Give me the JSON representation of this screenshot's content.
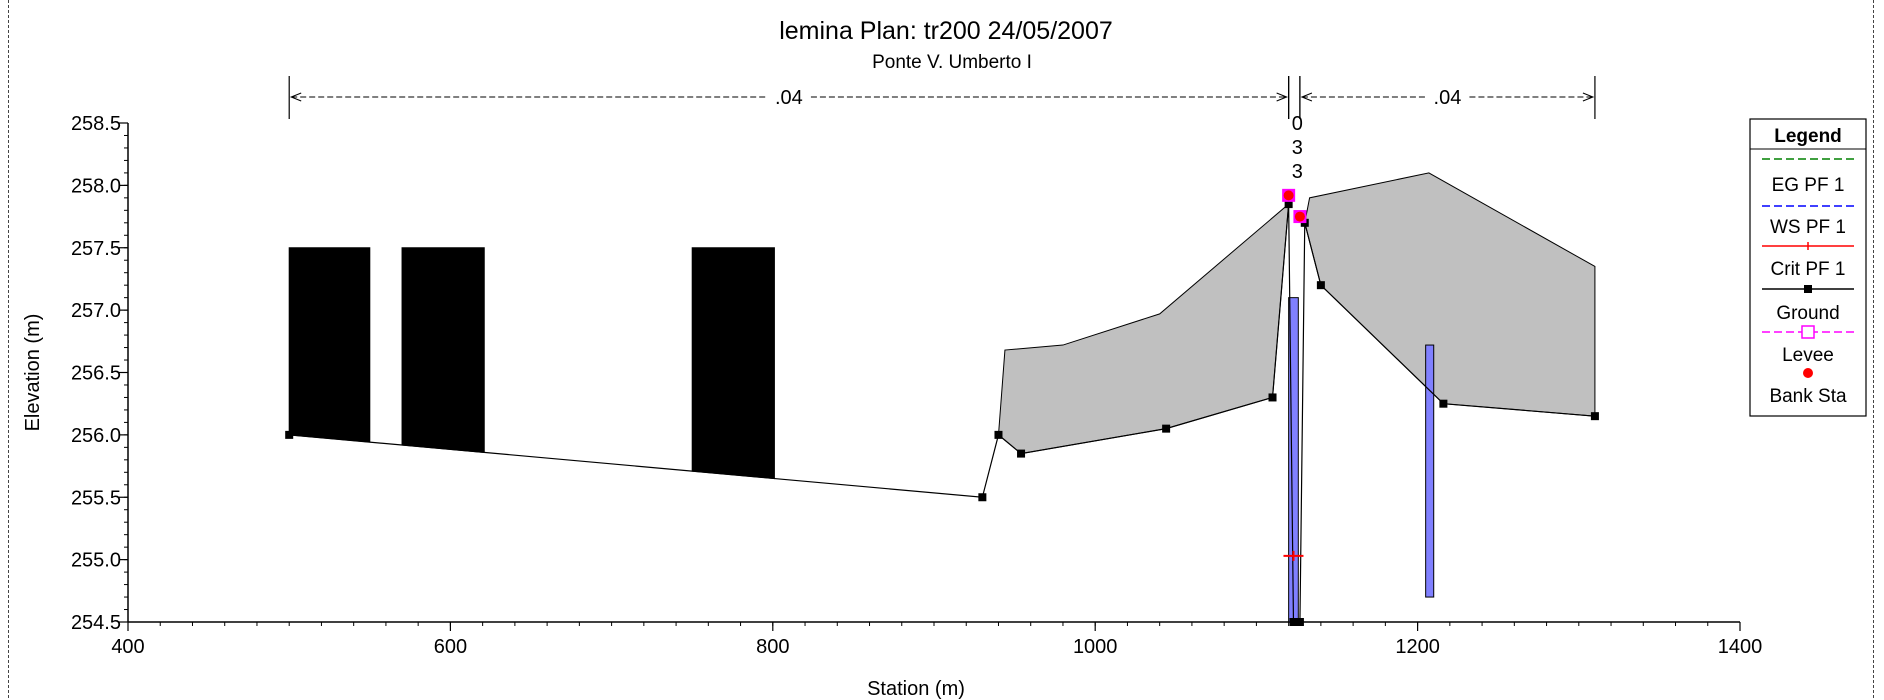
{
  "chart_data": {
    "type": "line",
    "title": "lemina       Plan: tr200    24/05/2007",
    "subtitle": "Ponte V. Umberto I",
    "xlabel": "Station (m)",
    "ylabel": "Elevation (m)",
    "xlim": [
      400,
      1400
    ],
    "ylim": [
      254.5,
      258.5
    ],
    "x_ticks": [
      400,
      600,
      800,
      1000,
      1200,
      1400
    ],
    "y_ticks": [
      254.5,
      255.0,
      255.5,
      256.0,
      256.5,
      257.0,
      257.5,
      258.0,
      258.5
    ],
    "grid": false,
    "legend_position": "right",
    "legend": {
      "title": "Legend",
      "entries": [
        {
          "name": "EG PF 1",
          "color": "#008000",
          "style": "dashed"
        },
        {
          "name": "WS PF 1",
          "color": "#0000ff",
          "style": "dashed"
        },
        {
          "name": "Crit PF 1",
          "color": "#ff0000",
          "style": "solid-plus"
        },
        {
          "name": "Ground",
          "color": "#000000",
          "style": "solid-square"
        },
        {
          "name": "Levee",
          "color": "#ff00ff",
          "style": "open-square"
        },
        {
          "name": "Bank Sta",
          "color": "#ff0000",
          "style": "dot"
        }
      ]
    },
    "manning": [
      {
        "label": ".04",
        "from": 500,
        "to": 1120
      },
      {
        "label": "0\n3\n3",
        "from": 1120,
        "to": 1127
      },
      {
        "label": ".04",
        "from": 1127,
        "to": 1310
      }
    ],
    "ground": {
      "x": [
        500,
        930,
        940,
        954,
        1044,
        1110,
        1120,
        1123,
        1127,
        1130,
        1140,
        1216,
        1310
      ],
      "y": [
        256.0,
        255.5,
        256.0,
        255.85,
        256.05,
        256.3,
        257.85,
        254.5,
        254.5,
        257.7,
        257.2,
        256.25,
        256.15
      ]
    },
    "bridge_deck": [
      [
        [
          940,
          256.0
        ],
        [
          944,
          256.68
        ],
        [
          980,
          256.72
        ],
        [
          1040,
          256.97
        ],
        [
          1120,
          257.85
        ],
        [
          1110,
          256.3
        ],
        [
          1044,
          256.05
        ],
        [
          954,
          255.85
        ]
      ],
      [
        [
          1130,
          257.7
        ],
        [
          1133,
          257.9
        ],
        [
          1207,
          258.1
        ],
        [
          1310,
          257.35
        ],
        [
          1310,
          256.15
        ],
        [
          1216,
          256.25
        ],
        [
          1140,
          257.2
        ]
      ]
    ],
    "obstructions": [
      {
        "from": 500,
        "to": 550,
        "top": 257.5
      },
      {
        "from": 570,
        "to": 621,
        "top": 257.5
      },
      {
        "from": 750,
        "to": 801,
        "top": 257.5
      }
    ],
    "piers": [
      {
        "from": 1120,
        "to": 1126,
        "bottom": 254.5,
        "top": 257.1
      },
      {
        "from": 1205,
        "to": 1210,
        "bottom": 254.7,
        "top": 256.72
      }
    ],
    "bank_stations": [
      {
        "x": 1120,
        "y": 257.92
      },
      {
        "x": 1127,
        "y": 257.75
      }
    ],
    "crit_ws": {
      "x": 1123,
      "y": 255.03
    }
  }
}
